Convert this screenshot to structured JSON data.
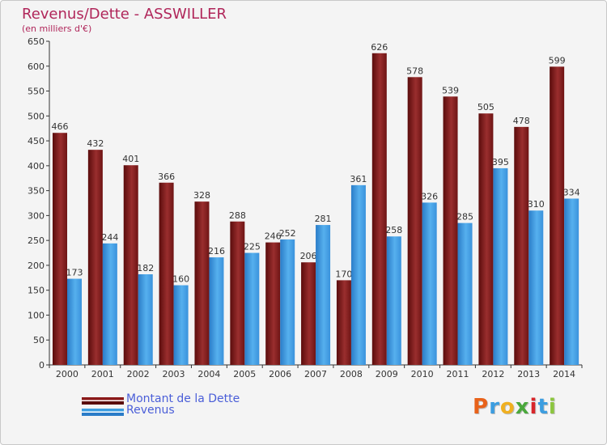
{
  "header": {
    "title": "Revenus/Dette - ASSWILLER",
    "subtitle": "(en milliers d'€)"
  },
  "chart_data": {
    "type": "bar",
    "categories": [
      "2000",
      "2001",
      "2002",
      "2003",
      "2004",
      "2005",
      "2006",
      "2007",
      "2008",
      "2009",
      "2010",
      "2011",
      "2012",
      "2013",
      "2014"
    ],
    "series": [
      {
        "name": "Montant de la Dette",
        "values": [
          466,
          432,
          401,
          366,
          328,
          288,
          246,
          206,
          170,
          626,
          578,
          539,
          505,
          478,
          599
        ],
        "color": "#8b1a1a"
      },
      {
        "name": "Revenus",
        "values": [
          173,
          244,
          182,
          160,
          216,
          225,
          252,
          281,
          361,
          258,
          326,
          285,
          395,
          310,
          334
        ],
        "color": "#3c9de0"
      }
    ],
    "title": "Revenus/Dette - ASSWILLER",
    "subtitle": "(en milliers d'€)",
    "ylim": [
      0,
      650
    ],
    "yticks": [
      0,
      50,
      100,
      150,
      200,
      250,
      300,
      350,
      400,
      450,
      500,
      550,
      600,
      650
    ],
    "grid": false,
    "legend": "bottom-left"
  },
  "legend": {
    "items": [
      {
        "label": "Montant de la Dette",
        "color": "#8b1a1a"
      },
      {
        "label": "Revenus",
        "color": "#3c9de0"
      }
    ]
  },
  "logo": {
    "letters": [
      "P",
      "r",
      "o",
      "x",
      "i",
      "t",
      "i"
    ],
    "colors": [
      "#e8621a",
      "#3c9de0",
      "#f0b020",
      "#4aa83c",
      "#d8262a",
      "#3c9de0",
      "#8cc63e"
    ]
  }
}
